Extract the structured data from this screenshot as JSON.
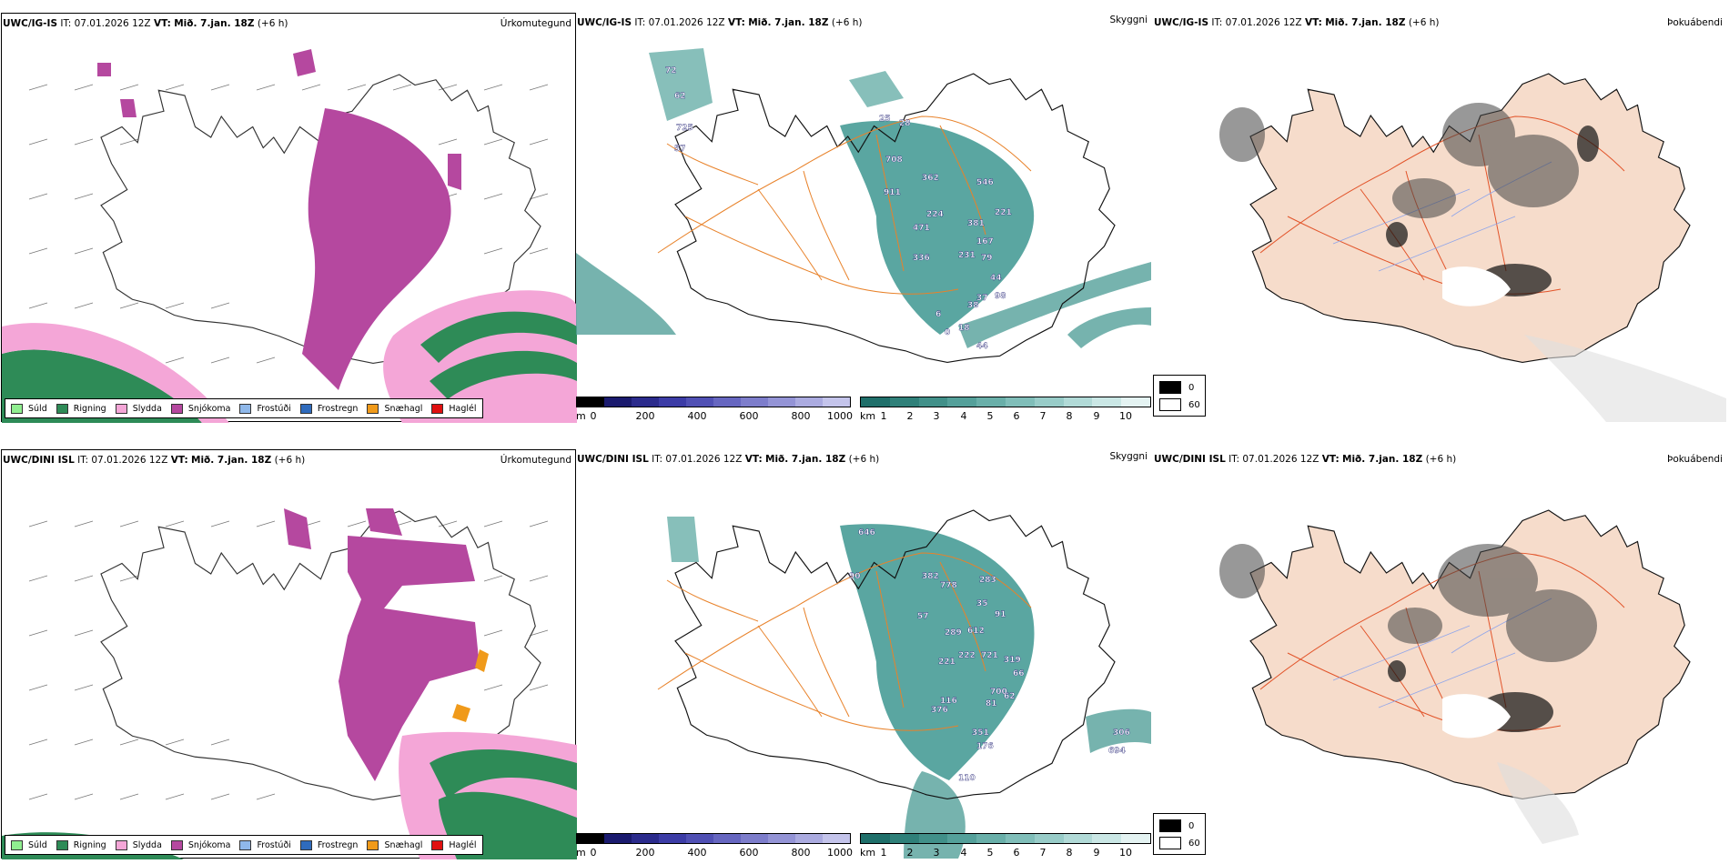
{
  "rows": [
    {
      "model": "UWC/IG-IS",
      "it_label": "IT:",
      "it_value": "07.01.2026 12Z",
      "vt_label": "VT:",
      "vt_value": "Mið. 7.jan. 18Z",
      "lead": "(+6 h)",
      "precip_title": "Úrkomutegund",
      "vis_title": "Skyggni",
      "fog_title": "Þokuábendi",
      "height_numbers": [
        "72",
        "62",
        "725",
        "57",
        "25",
        "28",
        "708",
        "911",
        "362",
        "546",
        "471",
        "224",
        "381",
        "167",
        "221",
        "79",
        "336",
        "231",
        "44",
        "37",
        "18",
        "44",
        "38",
        "98",
        "0",
        "6"
      ]
    },
    {
      "model": "UWC/DINI ISL",
      "it_label": "IT:",
      "it_value": "07.01.2026 12Z",
      "vt_label": "VT:",
      "vt_value": "Mið. 7.jan. 18Z",
      "lead": "(+6 h)",
      "precip_title": "Úrkomutegund",
      "vis_title": "Skyggni",
      "fog_title": "Þokuábendi",
      "height_numbers": [
        "646",
        "90",
        "382",
        "778",
        "283",
        "35",
        "57",
        "289",
        "612",
        "91",
        "221",
        "222",
        "721",
        "319",
        "66",
        "376",
        "116",
        "81",
        "351",
        "176",
        "110",
        "306",
        "694",
        "62",
        "700"
      ]
    }
  ],
  "precip_legend": [
    {
      "label": "Súld",
      "color": "#90ee90"
    },
    {
      "label": "Rigning",
      "color": "#2e8b57"
    },
    {
      "label": "Slydda",
      "color": "#f4a6d7"
    },
    {
      "label": "Snjókoma",
      "color": "#b5489f"
    },
    {
      "label": "Frostúði",
      "color": "#8fb8ea"
    },
    {
      "label": "Frostregn",
      "color": "#2f6bbd"
    },
    {
      "label": "Snæhagl",
      "color": "#f09a1a"
    },
    {
      "label": "Haglél",
      "color": "#e01010"
    }
  ],
  "height_scale": {
    "unit": "m",
    "ticks": [
      "0",
      "200",
      "400",
      "600",
      "800",
      "1000"
    ],
    "colors": [
      "#000000",
      "#1a1a6e",
      "#2b2b8c",
      "#3c3ca6",
      "#5050b4",
      "#6666c0",
      "#7d7dcb",
      "#9494d6",
      "#ababe0",
      "#c4c4eb"
    ]
  },
  "visibility_scale": {
    "unit": "km",
    "ticks": [
      "1",
      "2",
      "3",
      "4",
      "5",
      "6",
      "7",
      "8",
      "9",
      "10"
    ],
    "colors": [
      "#1f6f6a",
      "#2f8079",
      "#419089",
      "#54a09a",
      "#69afa9",
      "#80beb9",
      "#98ccc8",
      "#b1dad7",
      "#cae7e5",
      "#e4f3f2"
    ]
  },
  "fog_legend": [
    {
      "label": "0",
      "color": "#000000"
    },
    {
      "label": "60",
      "color": "#ffffff"
    }
  ]
}
